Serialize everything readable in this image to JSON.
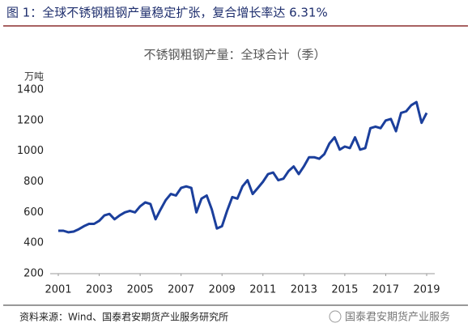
{
  "caption": "图 1：全球不锈钢粗钢产量稳定扩张，复合增长率达 6.31%",
  "source": "资料来源：Wind、国泰君安期货产业服务研究所",
  "watermark": "国泰君安期货产业服务",
  "chart_data": {
    "type": "line",
    "title": "不锈钢粗钢产量：全球合计（季）",
    "y_unit": "万吨",
    "color": "#1b3f9c",
    "x": [
      2001,
      2001.25,
      2001.5,
      2001.75,
      2002,
      2002.25,
      2002.5,
      2002.75,
      2003,
      2003.25,
      2003.5,
      2003.75,
      2004,
      2004.25,
      2004.5,
      2004.75,
      2005,
      2005.25,
      2005.5,
      2005.75,
      2006,
      2006.25,
      2006.5,
      2006.75,
      2007,
      2007.25,
      2007.5,
      2007.75,
      2008,
      2008.25,
      2008.5,
      2008.75,
      2009,
      2009.25,
      2009.5,
      2009.75,
      2010,
      2010.25,
      2010.5,
      2010.75,
      2011,
      2011.25,
      2011.5,
      2011.75,
      2012,
      2012.25,
      2012.5,
      2012.75,
      2013,
      2013.25,
      2013.5,
      2013.75,
      2014,
      2014.25,
      2014.5,
      2014.75,
      2015,
      2015.25,
      2015.5,
      2015.75,
      2016,
      2016.25,
      2016.5,
      2016.75,
      2017,
      2017.25,
      2017.5,
      2017.75,
      2018,
      2018.25,
      2018.5,
      2018.75,
      2019
    ],
    "values": [
      480,
      480,
      470,
      475,
      490,
      510,
      525,
      525,
      545,
      580,
      590,
      555,
      580,
      600,
      610,
      600,
      640,
      665,
      655,
      555,
      620,
      680,
      720,
      710,
      760,
      770,
      760,
      600,
      690,
      710,
      620,
      495,
      510,
      610,
      700,
      690,
      770,
      810,
      720,
      760,
      800,
      850,
      860,
      810,
      820,
      870,
      900,
      850,
      900,
      960,
      960,
      950,
      980,
      1050,
      1090,
      1010,
      1030,
      1020,
      1090,
      1010,
      1020,
      1150,
      1160,
      1150,
      1200,
      1210,
      1130,
      1250,
      1260,
      1300,
      1320,
      1185,
      1250
    ],
    "xlim": [
      2001,
      2019
    ],
    "xticks": [
      2001,
      2003,
      2005,
      2007,
      2009,
      2011,
      2013,
      2015,
      2017,
      2019
    ],
    "ylim": [
      200,
      1400
    ],
    "yticks": [
      200,
      400,
      600,
      800,
      1000,
      1200,
      1400
    ]
  }
}
